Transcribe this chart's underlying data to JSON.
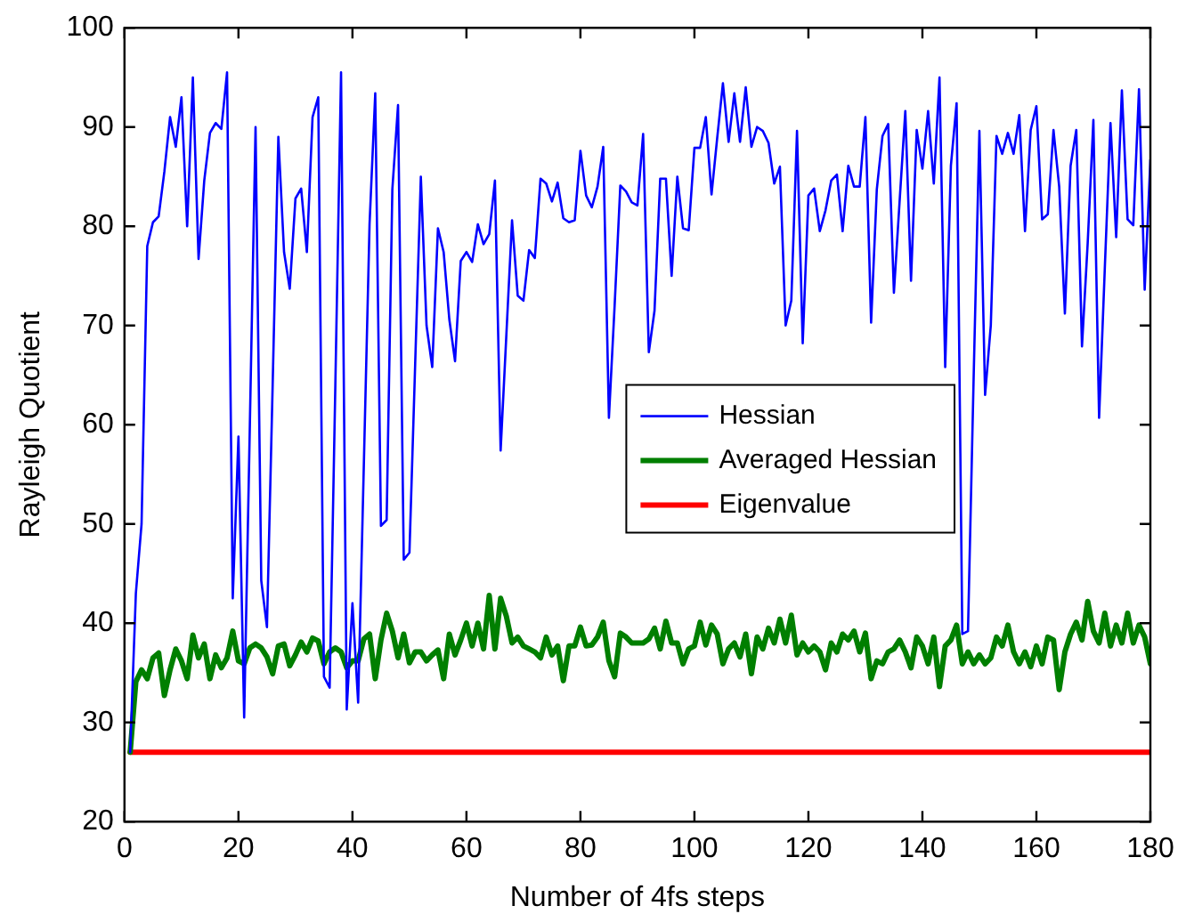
{
  "chart_data": {
    "type": "line",
    "xlabel": "Number of 4fs steps",
    "ylabel": "Rayleigh Quotient",
    "xlim": [
      0,
      180
    ],
    "ylim": [
      20,
      100
    ],
    "xticks": [
      0,
      20,
      40,
      60,
      80,
      100,
      120,
      140,
      160,
      180
    ],
    "yticks": [
      20,
      30,
      40,
      50,
      60,
      70,
      80,
      90,
      100
    ],
    "grid": false,
    "legend": "right",
    "marker": "none",
    "line_style": "solid",
    "x": [
      1,
      2,
      3,
      4,
      5,
      6,
      7,
      8,
      9,
      10,
      11,
      12,
      13,
      14,
      15,
      16,
      17,
      18,
      19,
      20,
      21,
      22,
      23,
      24,
      25,
      26,
      27,
      28,
      29,
      30,
      31,
      32,
      33,
      34,
      35,
      36,
      37,
      38,
      39,
      40,
      41,
      42,
      43,
      44,
      45,
      46,
      47,
      48,
      49,
      50,
      51,
      52,
      53,
      54,
      55,
      56,
      57,
      58,
      59,
      60,
      61,
      62,
      63,
      64,
      65,
      66,
      67,
      68,
      69,
      70,
      71,
      72,
      73,
      74,
      75,
      76,
      77,
      78,
      79,
      80,
      81,
      82,
      83,
      84,
      85,
      86,
      87,
      88,
      89,
      90,
      91,
      92,
      93,
      94,
      95,
      96,
      97,
      98,
      99,
      100,
      101,
      102,
      103,
      104,
      105,
      106,
      107,
      108,
      109,
      110,
      111,
      112,
      113,
      114,
      115,
      116,
      117,
      118,
      119,
      120,
      121,
      122,
      123,
      124,
      125,
      126,
      127,
      128,
      129,
      130,
      131,
      132,
      133,
      134,
      135,
      136,
      137,
      138,
      139,
      140,
      141,
      142,
      143,
      144,
      145,
      146,
      147,
      148,
      149,
      150,
      151,
      152,
      153,
      154,
      155,
      156,
      157,
      158,
      159,
      160,
      161,
      162,
      163,
      164,
      165,
      166,
      167,
      168,
      169,
      170,
      171,
      172,
      173,
      174,
      175,
      176,
      177,
      178,
      179,
      180
    ],
    "series": [
      {
        "name": "Hessian",
        "color": "#0000ff",
        "values": [
          27,
          43,
          50,
          78,
          80.4,
          81,
          85.5,
          91,
          88,
          93,
          80,
          95,
          76.7,
          84.6,
          89.4,
          90.4,
          89.8,
          95.5,
          42.5,
          58.8,
          30.5,
          60,
          90,
          44.3,
          39.6,
          64,
          89,
          77.4,
          73.7,
          82.8,
          83.8,
          77.4,
          91,
          93,
          34.6,
          33.5,
          64,
          95.5,
          31.3,
          42,
          32,
          56,
          80.2,
          93.4,
          49.8,
          50.4,
          83.7,
          92.2,
          46.4,
          47.1,
          66,
          85,
          70,
          65.8,
          79.8,
          77.4,
          70.6,
          66.4,
          76.5,
          77.4,
          76.4,
          80.2,
          78.2,
          79.2,
          84.6,
          57.4,
          69,
          80.6,
          73,
          72.5,
          77.6,
          76.8,
          84.8,
          84.3,
          82.5,
          84.4,
          80.8,
          80.4,
          80.6,
          87.6,
          83.1,
          81.9,
          84,
          88,
          60.7,
          72,
          84.1,
          83.5,
          82.4,
          82.1,
          89.3,
          67.3,
          71.5,
          84.8,
          84.8,
          75,
          85,
          79.8,
          79.6,
          87.9,
          87.9,
          91,
          83.2,
          88.9,
          94.4,
          88.5,
          93.4,
          88.5,
          94,
          88,
          90,
          89.6,
          88.4,
          84.3,
          86,
          70,
          72.5,
          89.6,
          68.2,
          83.1,
          83.8,
          79.5,
          81.6,
          84.6,
          85.2,
          79.5,
          86.1,
          84,
          84,
          91,
          70.3,
          83.7,
          89.1,
          90.3,
          73.3,
          82.5,
          91.6,
          74.5,
          89.7,
          85.8,
          91.6,
          84.3,
          95,
          65.8,
          86.1,
          92.4,
          38.9,
          39.2,
          65,
          89.6,
          63,
          70,
          89.1,
          87.3,
          89.4,
          87.3,
          91.2,
          79.5,
          89.7,
          92.1,
          80.7,
          81.2,
          89.7,
          84,
          71.2,
          86.1,
          89.7,
          67.9,
          78.3,
          90.7,
          60.7,
          75.7,
          90.4,
          78.9,
          93.7,
          80.7,
          80.1,
          93.8,
          73.6,
          86.7
        ]
      },
      {
        "name": "Averaged Hessian",
        "color": "#007f00",
        "values": [
          27,
          34.1,
          35.3,
          34.4,
          36.5,
          37,
          32.7,
          35.3,
          37.4,
          36.2,
          34.4,
          38.8,
          36.5,
          37.9,
          34.4,
          36.8,
          35.5,
          36.5,
          39.2,
          36.2,
          35.9,
          37.5,
          37.9,
          37.5,
          36.6,
          34.9,
          37.7,
          37.9,
          35.7,
          36.8,
          38.1,
          37.1,
          38.5,
          38.2,
          35.9,
          37.1,
          37.5,
          37.1,
          35.5,
          36.2,
          36.2,
          38.4,
          38.9,
          34.4,
          38.3,
          41,
          39.2,
          36.5,
          38.9,
          36,
          37.1,
          37.1,
          36.2,
          36.8,
          37.3,
          34.4,
          38.9,
          36.8,
          38.3,
          40,
          37.7,
          40,
          37.4,
          42.8,
          37.4,
          42.5,
          40.7,
          38,
          38.6,
          37.7,
          37.4,
          37.1,
          36.5,
          38.6,
          36.8,
          37.7,
          34.2,
          37.7,
          37.7,
          39.6,
          37.7,
          37.8,
          38.6,
          40.1,
          36.2,
          34.6,
          39,
          38.6,
          38,
          38,
          38,
          38.4,
          39.5,
          37.4,
          40.2,
          38,
          38,
          35.9,
          37.4,
          37.7,
          40.1,
          37.8,
          39.8,
          38.9,
          35.9,
          37.4,
          38,
          36.6,
          38.9,
          34.9,
          38.6,
          37.4,
          39.5,
          38,
          40.4,
          38,
          40.8,
          36.8,
          38,
          37.1,
          37.7,
          37.1,
          35.3,
          38,
          37.1,
          38.9,
          38.3,
          39.2,
          37.1,
          39,
          34.4,
          36.2,
          35.9,
          37.1,
          37.4,
          38.3,
          37.1,
          35.5,
          38.6,
          37.7,
          35.9,
          38.6,
          33.6,
          37.7,
          38.3,
          39.8,
          35.9,
          37.1,
          35.9,
          36.8,
          35.9,
          36.5,
          38.6,
          37.7,
          39.8,
          37.1,
          35.9,
          37.1,
          35.6,
          37.7,
          35.9,
          38.6,
          38.3,
          33.3,
          37.1,
          38.9,
          40.1,
          38.3,
          42.2,
          39.2,
          38,
          41,
          37.7,
          39.8,
          38,
          41,
          38,
          39.8,
          38.6,
          35.9
        ]
      },
      {
        "name": "Eigenvalue",
        "color": "#ff0000",
        "x": [
          1,
          180
        ],
        "values": [
          27,
          27
        ]
      }
    ]
  }
}
